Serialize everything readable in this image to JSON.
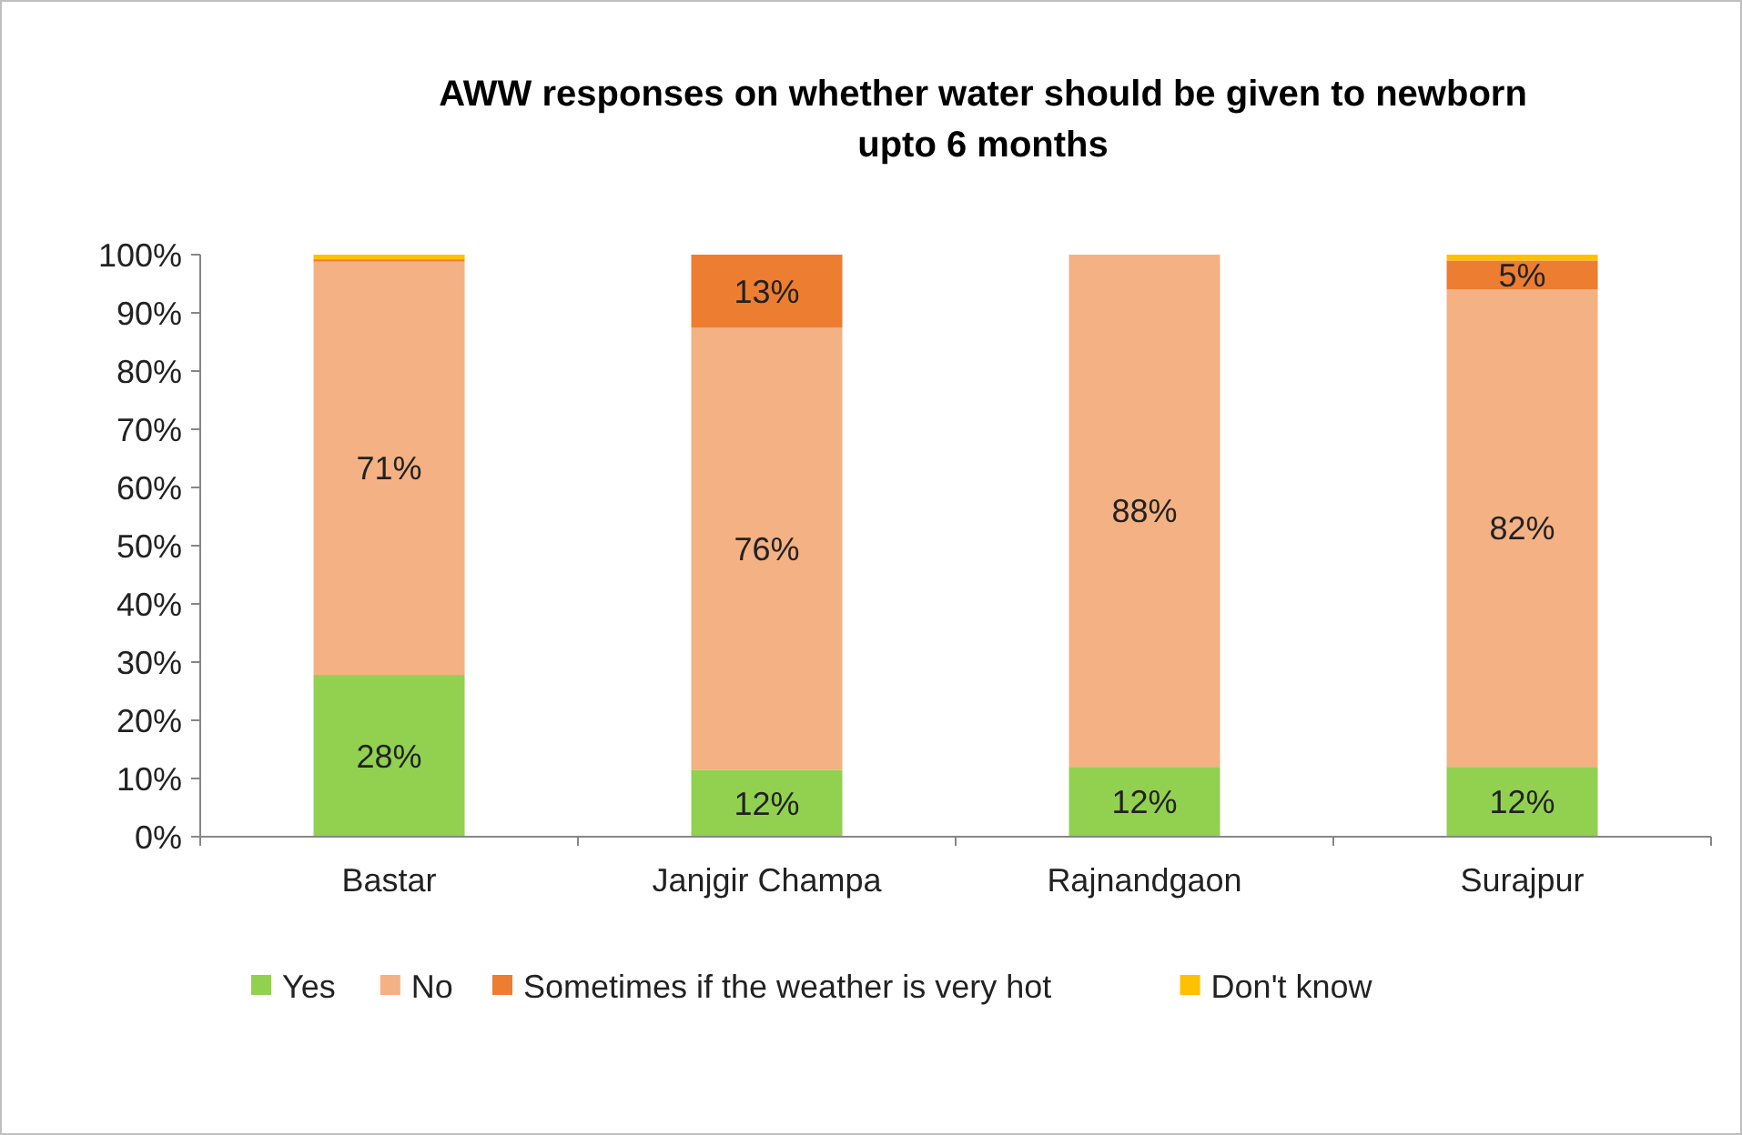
{
  "chart_data": {
    "type": "bar",
    "stacked": true,
    "title": "AWW responses on whether water should be given to newborn upto 6 months",
    "categories": [
      "Bastar",
      "Janjgir Champa",
      "Rajnandgaon",
      "Surajpur"
    ],
    "series": [
      {
        "name": "Yes",
        "color": "#92d050",
        "values": [
          27.8,
          11.5,
          12,
          12
        ],
        "value_labels": [
          "28%",
          "12%",
          "12%",
          "12%"
        ]
      },
      {
        "name": "No",
        "color": "#f4b183",
        "values": [
          71,
          76,
          88,
          82
        ],
        "value_labels": [
          "71%",
          "76%",
          "88%",
          "82%"
        ]
      },
      {
        "name": "Sometimes if the weather is very hot",
        "color": "#ed7d31",
        "values": [
          0.4,
          12.5,
          0,
          5
        ],
        "value_labels": [
          null,
          "13%",
          null,
          "5%"
        ]
      },
      {
        "name": "Don't know",
        "color": "#ffc000",
        "values": [
          0.8,
          0,
          0,
          1
        ],
        "value_labels": [
          null,
          null,
          null,
          null
        ]
      }
    ],
    "ylim": [
      0,
      100
    ],
    "yticks": [
      {
        "value": 0,
        "label": "0%"
      },
      {
        "value": 10,
        "label": "10%"
      },
      {
        "value": 20,
        "label": "20%"
      },
      {
        "value": 30,
        "label": "30%"
      },
      {
        "value": 40,
        "label": "40%"
      },
      {
        "value": 50,
        "label": "50%"
      },
      {
        "value": 60,
        "label": "60%"
      },
      {
        "value": 70,
        "label": "70%"
      },
      {
        "value": 80,
        "label": "80%"
      },
      {
        "value": 90,
        "label": "90%"
      },
      {
        "value": 100,
        "label": "100%"
      }
    ],
    "grid": false,
    "legend": "bottom"
  }
}
